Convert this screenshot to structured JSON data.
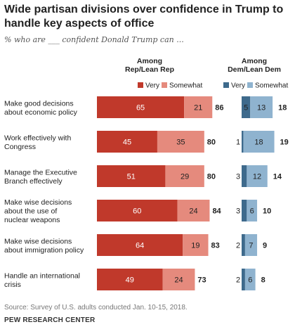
{
  "title": "Wide partisan divisions over confidence in Trump to handle key aspects of office",
  "subtitle": "% who are ___ confident Donald Trump can ...",
  "source": "Source: Survey of U.S. adults conducted Jan. 10-15, 2018.",
  "org": "PEW RESEARCH CENTER",
  "colors": {
    "rep_very": "#c0392b",
    "rep_somewhat": "#e58a7d",
    "dem_very": "#3e6a8c",
    "dem_somewhat": "#8fb3cf"
  },
  "chart_data": {
    "type": "bar",
    "stacked": true,
    "orientation": "horizontal",
    "categories": [
      [
        "Make good decisions",
        "about economic policy"
      ],
      [
        "Work effectively with",
        "Congress"
      ],
      [
        "Manage the Executive",
        "Branch effectively"
      ],
      [
        "Make wise decisions",
        "about the use of",
        "nuclear weapons"
      ],
      [
        "Make wise decisions",
        "about immigration policy"
      ],
      [
        "Handle an international",
        "crisis"
      ]
    ],
    "groups": [
      {
        "name": [
          "Among",
          "Rep/Lean Rep"
        ],
        "legend": [
          "Very",
          "Somewhat"
        ],
        "very": [
          65,
          45,
          51,
          60,
          64,
          49
        ],
        "somewhat": [
          21,
          35,
          29,
          24,
          19,
          24
        ],
        "total": [
          86,
          80,
          80,
          84,
          83,
          73
        ]
      },
      {
        "name": [
          "Among",
          "Dem/Lean Dem"
        ],
        "legend": [
          "Very",
          "Somewhat"
        ],
        "very": [
          5,
          1,
          3,
          3,
          2,
          2
        ],
        "somewhat": [
          13,
          18,
          12,
          6,
          7,
          6
        ],
        "total": [
          18,
          19,
          14,
          10,
          9,
          8
        ]
      }
    ]
  }
}
